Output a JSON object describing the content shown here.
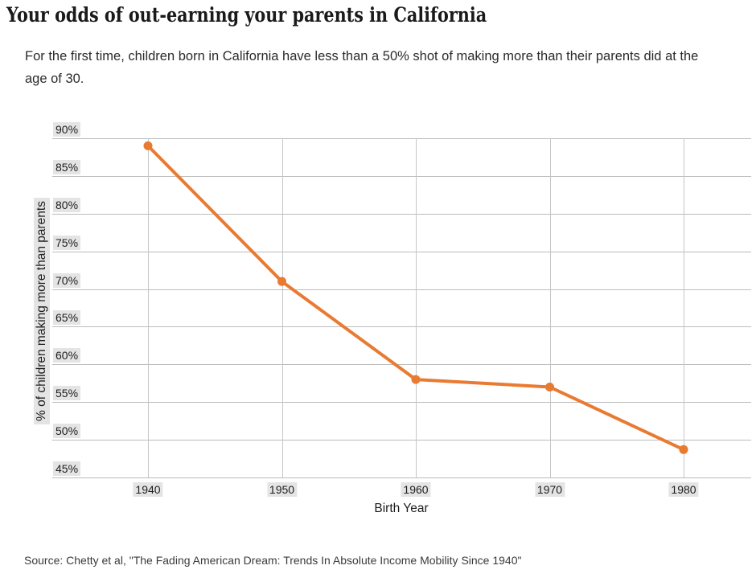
{
  "header": {
    "title": "Your odds of out-earning your parents in California",
    "subtitle": "For the first time, children born in California have less than a 50% shot of making more than their parents did at the age of 30."
  },
  "footer": {
    "source": "Source: Chetty et al, \"The Fading American Dream: Trends In Absolute Income Mobility Since 1940\""
  },
  "colors": {
    "accent_orange": "#E97A32",
    "gridline": "#BCBCBC",
    "label_background": "#E4E4E4",
    "text": "#1D1D1D"
  },
  "chart_data": {
    "type": "line",
    "title": "Your odds of out-earning your parents in California",
    "xlabel": "Birth Year",
    "ylabel": "% of children making more than parents",
    "x": [
      1940,
      1950,
      1960,
      1970,
      1980
    ],
    "x_labels": [
      "1940",
      "1950",
      "1960",
      "1970",
      "1980"
    ],
    "series": [
      {
        "name": "% of children making more than parents",
        "values": [
          89,
          71,
          58,
          57,
          48.7
        ]
      }
    ],
    "ylim": [
      45,
      90
    ],
    "yticks": [
      {
        "value": 45,
        "label": "45%"
      },
      {
        "value": 50,
        "label": "50%"
      },
      {
        "value": 55,
        "label": "55%"
      },
      {
        "value": 60,
        "label": "60%"
      },
      {
        "value": 65,
        "label": "65%"
      },
      {
        "value": 70,
        "label": "70%"
      },
      {
        "value": 75,
        "label": "75%"
      },
      {
        "value": 80,
        "label": "80%"
      },
      {
        "value": 85,
        "label": "85%"
      },
      {
        "value": 90,
        "label": "90%"
      }
    ],
    "grid": "both",
    "legend": "none",
    "line_color": "#E97A32",
    "marker": "circle"
  }
}
